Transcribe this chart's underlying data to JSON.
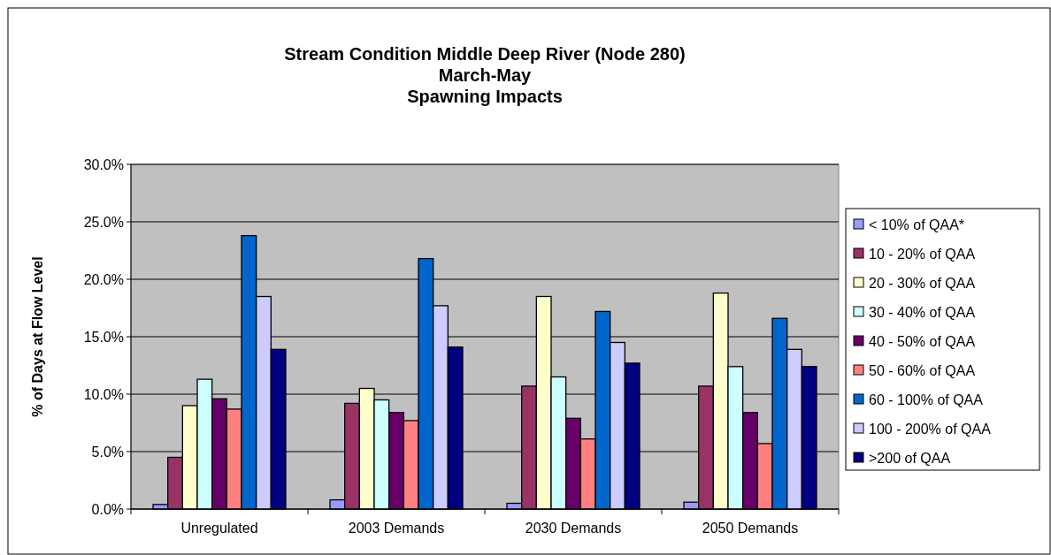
{
  "chart_data": {
    "type": "bar",
    "title": "Stream Condition Middle Deep River (Node 280)\nMarch-May\nSpawning Impacts",
    "ylabel": "% of Days at Flow Level",
    "categories": [
      "Unregulated",
      "2003 Demands",
      "2030 Demands",
      "2050 Demands"
    ],
    "series": [
      {
        "name": "< 10% of QAA*",
        "color": "#9999ff",
        "values": [
          0.4,
          0.8,
          0.5,
          0.6
        ]
      },
      {
        "name": "10 - 20% of QAA",
        "color": "#993366",
        "values": [
          4.5,
          9.2,
          10.7,
          10.7
        ]
      },
      {
        "name": "20 - 30% of QAA",
        "color": "#ffffcc",
        "values": [
          9.0,
          10.5,
          18.5,
          18.8
        ]
      },
      {
        "name": "30 - 40% of QAA",
        "color": "#ccffff",
        "values": [
          11.3,
          9.5,
          11.5,
          12.4
        ]
      },
      {
        "name": "40 - 50% of QAA",
        "color": "#660066",
        "values": [
          9.6,
          8.4,
          7.9,
          8.4
        ]
      },
      {
        "name": "50 - 60% of QAA",
        "color": "#ff8080",
        "values": [
          8.7,
          7.7,
          6.1,
          5.7
        ]
      },
      {
        "name": "60 - 100% of QAA",
        "color": "#0066cc",
        "values": [
          23.8,
          21.8,
          17.2,
          16.6
        ]
      },
      {
        "name": "100 - 200% of QAA",
        "color": "#ccccff",
        "values": [
          18.5,
          17.7,
          14.5,
          13.9
        ]
      },
      {
        "name": ">200 of QAA",
        "color": "#000080",
        "values": [
          13.9,
          14.1,
          12.7,
          12.4
        ]
      }
    ],
    "ylim": [
      0,
      30
    ],
    "yticks": [
      {
        "value": 0,
        "label": "0.0%"
      },
      {
        "value": 5,
        "label": "5.0%"
      },
      {
        "value": 10,
        "label": "10.0%"
      },
      {
        "value": 15,
        "label": "15.0%"
      },
      {
        "value": 20,
        "label": "20.0%"
      },
      {
        "value": 25,
        "label": "25.0%"
      },
      {
        "value": 30,
        "label": "30.0%"
      }
    ],
    "grid": "y",
    "legend": "right"
  }
}
